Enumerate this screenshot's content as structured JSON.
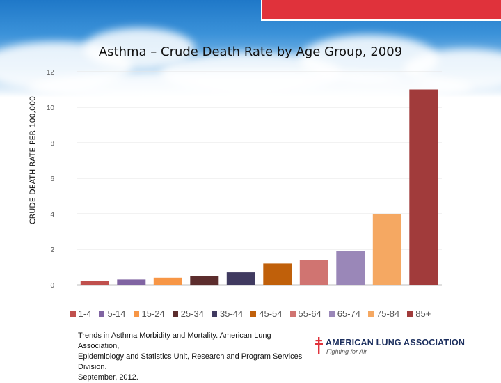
{
  "chart_data": {
    "type": "bar",
    "title": "Asthma – Crude Death Rate by Age Group, 2009",
    "ylabel": "CRUDE DEATH RATE PER 100,000",
    "xlabel": "",
    "ylim": [
      0,
      12
    ],
    "yticks": [
      "0",
      "2",
      "4",
      "6",
      "8",
      "10",
      "12"
    ],
    "grid": true,
    "legend_position": "bottom",
    "categories": [
      "1-4",
      "5-14",
      "15-24",
      "25-34",
      "35-44",
      "45-54",
      "55-64",
      "65-74",
      "75-84",
      "85+"
    ],
    "values": [
      0.2,
      0.3,
      0.4,
      0.5,
      0.7,
      1.2,
      1.4,
      1.9,
      4.0,
      11.0
    ],
    "colors": [
      "#c0504d",
      "#8064a2",
      "#f79646",
      "#5c2d2d",
      "#403a60",
      "#c0600a",
      "#d07471",
      "#9a87b8",
      "#f5a862",
      "#a13b3b"
    ]
  },
  "footer": {
    "source_lines": [
      "Trends in Asthma Morbidity and Mortality. American Lung Association,",
      "Epidemiology and Statistics Unit, Research and Program Services Division.",
      "September, 2012."
    ]
  },
  "logo": {
    "name": "AMERICAN LUNG ASSOCIATION",
    "tagline": "Fighting for Air",
    "icon": "double-barred-cross-icon",
    "color": "#e0323b"
  }
}
